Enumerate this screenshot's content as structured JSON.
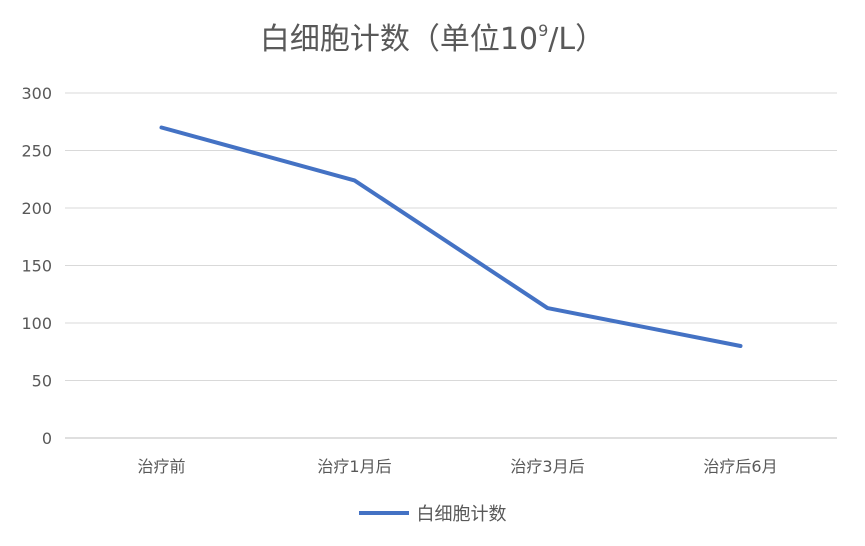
{
  "chart_data": {
    "type": "line",
    "title_prefix": "白细胞计数（单位10",
    "title_sup": "9",
    "title_suffix": "/L）",
    "categories": [
      "治疗前",
      "治疗1月后",
      "治疗3月后",
      "治疗后6月"
    ],
    "series": [
      {
        "name": "白细胞计数",
        "values": [
          270,
          224,
          113,
          80
        ],
        "color": "#4472C4"
      }
    ],
    "y_ticks": [
      0,
      50,
      100,
      150,
      200,
      250,
      300
    ],
    "ylim": [
      0,
      300
    ],
    "grid": true,
    "legend_position": "bottom"
  }
}
